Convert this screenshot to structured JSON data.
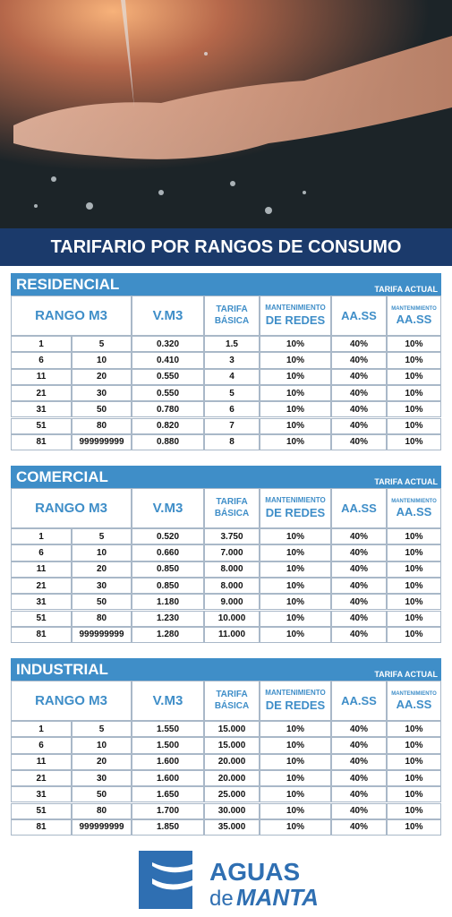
{
  "banner": {
    "title": "TARIFARIO POR RANGOS DE CONSUMO"
  },
  "sections": [
    {
      "name": "RESIDENCIAL",
      "badge": "TARIFA ACTUAL",
      "columns": [
        {
          "lines": [
            "RANGO M3"
          ]
        },
        {
          "lines": [
            "V.M3"
          ]
        },
        {
          "lines": [
            "TARIFA",
            "BÁSICA"
          ]
        },
        {
          "lines": [
            "MANTENIMIENTO",
            "DE REDES"
          ]
        },
        {
          "lines": [
            "AA.SS"
          ]
        },
        {
          "lines": [
            "MANTENIMIENTO",
            "AA.SS"
          ]
        }
      ],
      "rows": [
        [
          "1",
          "5",
          "0.320",
          "1.5",
          "10%",
          "40%",
          "10%"
        ],
        [
          "6",
          "10",
          "0.410",
          "3",
          "10%",
          "40%",
          "10%"
        ],
        [
          "11",
          "20",
          "0.550",
          "4",
          "10%",
          "40%",
          "10%"
        ],
        [
          "21",
          "30",
          "0.550",
          "5",
          "10%",
          "40%",
          "10%"
        ],
        [
          "31",
          "50",
          "0.780",
          "6",
          "10%",
          "40%",
          "10%"
        ],
        [
          "51",
          "80",
          "0.820",
          "7",
          "10%",
          "40%",
          "10%"
        ],
        [
          "81",
          "999999999",
          "0.880",
          "8",
          "10%",
          "40%",
          "10%"
        ]
      ]
    },
    {
      "name": "COMERCIAL",
      "badge": "TARIFA ACTUAL",
      "columns": [
        {
          "lines": [
            "RANGO M3"
          ]
        },
        {
          "lines": [
            "V.M3"
          ]
        },
        {
          "lines": [
            "TARIFA",
            "BÁSICA"
          ]
        },
        {
          "lines": [
            "MANTENIMIENTO",
            "DE REDES"
          ]
        },
        {
          "lines": [
            "AA.SS"
          ]
        },
        {
          "lines": [
            "MANTENIMIENTO",
            "AA.SS"
          ]
        }
      ],
      "rows": [
        [
          "1",
          "5",
          "0.520",
          "3.750",
          "10%",
          "40%",
          "10%"
        ],
        [
          "6",
          "10",
          "0.660",
          "7.000",
          "10%",
          "40%",
          "10%"
        ],
        [
          "11",
          "20",
          "0.850",
          "8.000",
          "10%",
          "40%",
          "10%"
        ],
        [
          "21",
          "30",
          "0.850",
          "8.000",
          "10%",
          "40%",
          "10%"
        ],
        [
          "31",
          "50",
          "1.180",
          "9.000",
          "10%",
          "40%",
          "10%"
        ],
        [
          "51",
          "80",
          "1.230",
          "10.000",
          "10%",
          "40%",
          "10%"
        ],
        [
          "81",
          "999999999",
          "1.280",
          "11.000",
          "10%",
          "40%",
          "10%"
        ]
      ]
    },
    {
      "name": "INDUSTRIAL",
      "badge": "TARIFA ACTUAL",
      "columns": [
        {
          "lines": [
            "RANGO M3"
          ]
        },
        {
          "lines": [
            "V.M3"
          ]
        },
        {
          "lines": [
            "TARIFA",
            "BÁSICA"
          ]
        },
        {
          "lines": [
            "MANTENIMIENTO",
            "DE REDES"
          ]
        },
        {
          "lines": [
            "AA.SS"
          ]
        },
        {
          "lines": [
            "MANTENIMIENTO",
            "AA.SS"
          ]
        }
      ],
      "rows": [
        [
          "1",
          "5",
          "1.550",
          "15.000",
          "10%",
          "40%",
          "10%"
        ],
        [
          "6",
          "10",
          "1.500",
          "15.000",
          "10%",
          "40%",
          "10%"
        ],
        [
          "11",
          "20",
          "1.600",
          "20.000",
          "10%",
          "40%",
          "10%"
        ],
        [
          "21",
          "30",
          "1.600",
          "20.000",
          "10%",
          "40%",
          "10%"
        ],
        [
          "31",
          "50",
          "1.650",
          "25.000",
          "10%",
          "40%",
          "10%"
        ],
        [
          "51",
          "80",
          "1.700",
          "30.000",
          "10%",
          "40%",
          "10%"
        ],
        [
          "81",
          "999999999",
          "1.850",
          "35.000",
          "10%",
          "40%",
          "10%"
        ]
      ]
    }
  ],
  "logo": {
    "line1": "AGUAS",
    "line2": "de",
    "line3": "MANTA"
  }
}
